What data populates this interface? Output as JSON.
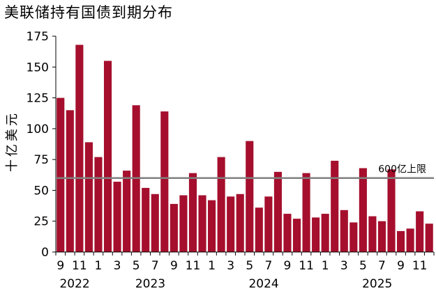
{
  "chart_data": {
    "type": "bar",
    "title": "美联储持有国债到期分布",
    "ylabel": "十亿美元",
    "xlabel": "",
    "ylim": [
      0,
      175
    ],
    "yticks": [
      0,
      25,
      50,
      75,
      100,
      125,
      150,
      175
    ],
    "grid": false,
    "legend": "none",
    "bar_color": "#a50f2d",
    "reference_line": {
      "value": 60,
      "label": "600亿上限",
      "color": "#808080"
    },
    "months": [
      "9",
      "10",
      "11",
      "12",
      "1",
      "2",
      "3",
      "4",
      "5",
      "6",
      "7",
      "8",
      "9",
      "10",
      "11",
      "12",
      "1",
      "2",
      "3",
      "4",
      "5",
      "6",
      "7",
      "8",
      "9",
      "10",
      "11",
      "12",
      "1",
      "2",
      "3",
      "4",
      "5",
      "6",
      "7",
      "8",
      "9",
      "10",
      "11",
      "12"
    ],
    "x_tick_labels": [
      {
        "index": 0,
        "label": "9"
      },
      {
        "index": 2,
        "label": "11"
      },
      {
        "index": 4,
        "label": "1"
      },
      {
        "index": 6,
        "label": "3"
      },
      {
        "index": 8,
        "label": "5"
      },
      {
        "index": 10,
        "label": "7"
      },
      {
        "index": 12,
        "label": "9"
      },
      {
        "index": 14,
        "label": "11"
      },
      {
        "index": 16,
        "label": "1"
      },
      {
        "index": 18,
        "label": "3"
      },
      {
        "index": 20,
        "label": "5"
      },
      {
        "index": 22,
        "label": "7"
      },
      {
        "index": 24,
        "label": "9"
      },
      {
        "index": 26,
        "label": "11"
      },
      {
        "index": 28,
        "label": "1"
      },
      {
        "index": 30,
        "label": "3"
      },
      {
        "index": 32,
        "label": "5"
      },
      {
        "index": 34,
        "label": "7"
      },
      {
        "index": 36,
        "label": "9"
      },
      {
        "index": 38,
        "label": "11"
      }
    ],
    "year_labels": [
      {
        "label": "2022",
        "center_index": 1.5
      },
      {
        "label": "2023",
        "center_index": 9.5
      },
      {
        "label": "2024",
        "center_index": 21.5
      },
      {
        "label": "2025",
        "center_index": 33.5
      }
    ],
    "values": [
      125,
      115,
      168,
      89,
      77,
      155,
      57,
      66,
      119,
      52,
      47,
      114,
      39,
      46,
      64,
      46,
      42,
      77,
      45,
      47,
      90,
      36,
      45,
      65,
      31,
      27,
      64,
      28,
      31,
      74,
      34,
      24,
      68,
      29,
      25,
      67,
      17,
      19,
      33,
      23
    ]
  }
}
